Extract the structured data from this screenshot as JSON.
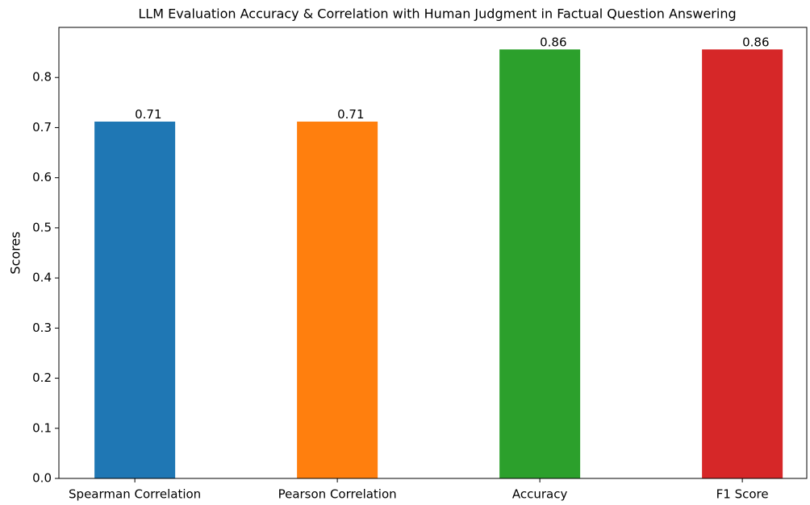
{
  "chart_data": {
    "type": "bar",
    "title": "LLM Evaluation Accuracy & Correlation with Human Judgment in Factual Question Answering",
    "y_label": "Scores",
    "categories": [
      "Spearman Correlation",
      "Pearson Correlation",
      "Accuracy",
      "F1 Score"
    ],
    "values": [
      0.712,
      0.712,
      0.856,
      0.856
    ],
    "value_labels": [
      "0.71",
      "0.71",
      "0.86",
      "0.86"
    ],
    "colors": [
      "#1f77b4",
      "#ff7f0e",
      "#2ca02c",
      "#d62728"
    ],
    "ylim": [
      0,
      0.9
    ],
    "yticks": [
      {
        "value": 0,
        "label": "0.0"
      },
      0.1,
      0.2,
      0.3,
      0.4,
      0.5,
      0.6,
      0.7,
      0.8
    ],
    "grid": false
  }
}
